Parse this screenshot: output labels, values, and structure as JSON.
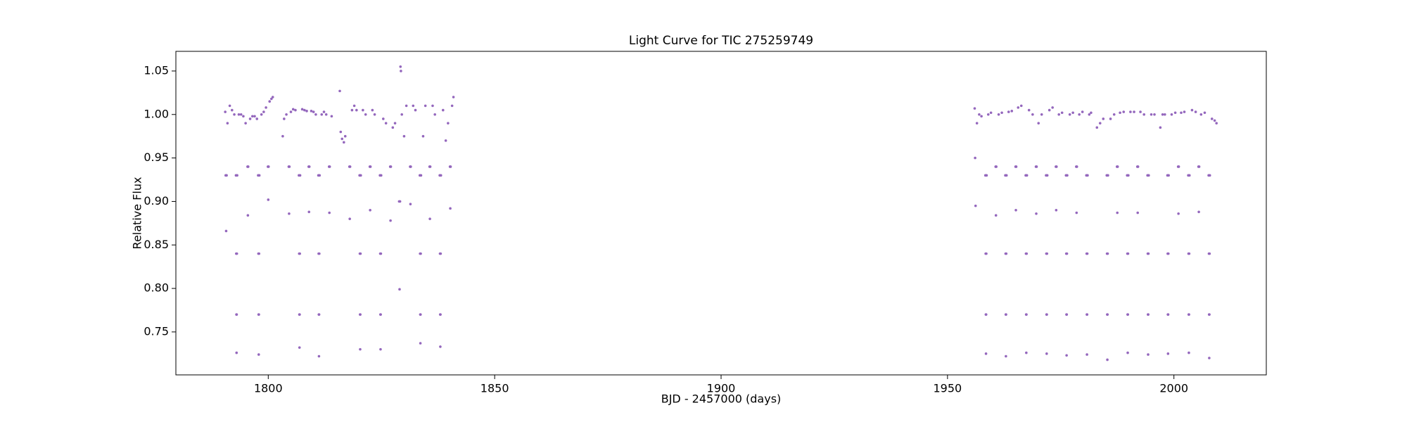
{
  "chart_data": {
    "type": "scatter",
    "title": "Light Curve for TIC 275259749",
    "x_label": "BJD - 2457000 (days)",
    "y_label": "Relative Flux",
    "color": "#9467bd",
    "x": [
      1790.5,
      1790.6,
      1790.7,
      1790.8,
      1791.0,
      1791.5,
      1792.0,
      1792.5,
      1792.87,
      1792.93,
      1792.97,
      1793.0,
      1793.03,
      1793.07,
      1793.13,
      1793.5,
      1794.0,
      1794.5,
      1795.0,
      1795.43,
      1795.5,
      1795.57,
      1796.0,
      1796.5,
      1797.0,
      1797.5,
      1797.77,
      1797.83,
      1797.87,
      1797.9,
      1797.93,
      1797.97,
      1798.03,
      1798.5,
      1799.0,
      1799.5,
      1799.93,
      1800.0,
      1800.07,
      1800.3,
      1800.7,
      1801.0,
      1803.2,
      1803.5,
      1804.0,
      1804.53,
      1804.6,
      1804.67,
      1805.0,
      1805.5,
      1806.0,
      1806.77,
      1806.83,
      1806.87,
      1806.9,
      1806.93,
      1806.97,
      1807.03,
      1807.5,
      1808.0,
      1808.5,
      1808.93,
      1809.0,
      1809.07,
      1809.5,
      1810.0,
      1810.5,
      1811.07,
      1811.13,
      1811.17,
      1811.2,
      1811.23,
      1811.27,
      1811.33,
      1811.8,
      1812.3,
      1812.8,
      1813.43,
      1813.5,
      1813.57,
      1814.0,
      1815.8,
      1816.0,
      1816.3,
      1816.7,
      1817.0,
      1817.93,
      1818.0,
      1818.07,
      1818.5,
      1819.0,
      1819.5,
      1820.17,
      1820.23,
      1820.27,
      1820.3,
      1820.33,
      1820.37,
      1820.43,
      1820.9,
      1821.5,
      1822.43,
      1822.5,
      1822.57,
      1823.0,
      1823.5,
      1824.67,
      1824.73,
      1824.77,
      1824.8,
      1824.83,
      1824.87,
      1824.93,
      1825.4,
      1826.0,
      1826.93,
      1827.0,
      1827.07,
      1827.5,
      1828.0,
      1828.9,
      1829.0,
      1829.1,
      1829.2,
      1829.3,
      1829.5,
      1830.0,
      1830.5,
      1831.33,
      1831.4,
      1831.47,
      1832.0,
      1832.5,
      1833.47,
      1833.53,
      1833.57,
      1833.6,
      1833.63,
      1833.67,
      1833.73,
      1834.2,
      1834.7,
      1835.63,
      1835.7,
      1835.77,
      1836.3,
      1836.8,
      1837.87,
      1837.93,
      1837.97,
      1838.0,
      1838.03,
      1838.07,
      1838.13,
      1838.6,
      1839.2,
      1839.7,
      1840.13,
      1840.2,
      1840.27,
      1840.6,
      1840.9,
      1956.0,
      1956.1,
      1956.2,
      1956.5,
      1957.0,
      1957.5,
      1958.37,
      1958.43,
      1958.47,
      1958.5,
      1958.53,
      1958.57,
      1958.63,
      1959.0,
      1959.6,
      1960.63,
      1960.7,
      1960.77,
      1961.3,
      1962.0,
      1962.77,
      1962.83,
      1962.87,
      1962.9,
      1962.93,
      1962.97,
      1963.03,
      1963.5,
      1964.2,
      1965.03,
      1965.1,
      1965.17,
      1965.6,
      1966.3,
      1967.27,
      1967.33,
      1967.37,
      1967.4,
      1967.43,
      1967.47,
      1967.53,
      1968.0,
      1968.8,
      1969.53,
      1969.6,
      1969.67,
      1970.1,
      1970.8,
      1971.77,
      1971.83,
      1971.87,
      1971.9,
      1971.93,
      1971.97,
      1972.03,
      1972.5,
      1973.2,
      1973.93,
      1974.0,
      1974.07,
      1974.6,
      1975.3,
      1976.17,
      1976.23,
      1976.27,
      1976.3,
      1976.33,
      1976.37,
      1976.43,
      1977.0,
      1977.7,
      1978.43,
      1978.5,
      1978.57,
      1979.1,
      1979.8,
      1980.67,
      1980.73,
      1980.77,
      1980.8,
      1980.83,
      1980.87,
      1980.93,
      1981.3,
      1981.7,
      1983.0,
      1983.7,
      1984.4,
      1985.17,
      1985.23,
      1985.27,
      1985.3,
      1985.33,
      1985.37,
      1985.43,
      1986.0,
      1986.8,
      1987.43,
      1987.5,
      1987.57,
      1988.1,
      1988.9,
      1989.67,
      1989.73,
      1989.77,
      1989.8,
      1989.83,
      1989.87,
      1989.93,
      1990.4,
      1991.2,
      1991.93,
      1992.0,
      1992.07,
      1992.6,
      1993.4,
      1994.17,
      1994.23,
      1994.27,
      1994.3,
      1994.33,
      1994.37,
      1994.43,
      1995.0,
      1995.7,
      1997.0,
      1997.5,
      1998.0,
      1998.57,
      1998.63,
      1998.67,
      1998.7,
      1998.73,
      1998.77,
      1998.83,
      1999.5,
      2000.3,
      2000.93,
      2001.0,
      2001.07,
      2001.6,
      2002.3,
      2003.17,
      2003.23,
      2003.27,
      2003.3,
      2003.33,
      2003.37,
      2003.43,
      2004.0,
      2004.8,
      2005.43,
      2005.5,
      2005.57,
      2006.0,
      2006.8,
      2007.67,
      2007.73,
      2007.77,
      2007.8,
      2007.83,
      2007.87,
      2007.93,
      2008.4,
      2009.0,
      2009.4
    ],
    "values": [
      1.003,
      0.93,
      0.866,
      0.93,
      0.99,
      1.01,
      1.005,
      1.0,
      0.93,
      0.84,
      0.77,
      0.726,
      0.77,
      0.84,
      0.93,
      1.0,
      1.0,
      0.998,
      0.99,
      0.94,
      0.884,
      0.94,
      0.995,
      0.998,
      0.998,
      0.995,
      0.93,
      0.84,
      0.77,
      0.724,
      0.77,
      0.84,
      0.93,
      1.0,
      1.003,
      1.008,
      0.94,
      0.902,
      0.94,
      1.015,
      1.018,
      1.02,
      0.975,
      0.995,
      1.0,
      0.94,
      0.886,
      0.94,
      1.003,
      1.006,
      1.005,
      0.93,
      0.84,
      0.77,
      0.732,
      0.77,
      0.84,
      0.93,
      1.006,
      1.005,
      1.004,
      0.94,
      0.888,
      0.94,
      1.004,
      1.003,
      1.0,
      0.93,
      0.84,
      0.77,
      0.722,
      0.77,
      0.84,
      0.93,
      1.0,
      1.003,
      1.0,
      0.94,
      0.887,
      0.94,
      0.998,
      1.027,
      0.98,
      0.972,
      0.968,
      0.975,
      0.94,
      0.88,
      0.94,
      1.005,
      1.01,
      1.005,
      0.93,
      0.84,
      0.77,
      0.73,
      0.77,
      0.84,
      0.93,
      1.005,
      1.0,
      0.94,
      0.89,
      0.94,
      1.005,
      1.0,
      0.93,
      0.84,
      0.77,
      0.73,
      0.77,
      0.84,
      0.93,
      0.995,
      0.99,
      0.94,
      0.878,
      0.94,
      0.985,
      0.99,
      0.9,
      0.799,
      0.9,
      1.055,
      1.05,
      1.0,
      0.975,
      1.01,
      0.94,
      0.897,
      0.94,
      1.01,
      1.005,
      0.93,
      0.84,
      0.77,
      0.737,
      0.77,
      0.84,
      0.93,
      0.975,
      1.01,
      0.94,
      0.88,
      0.94,
      1.01,
      1.0,
      0.93,
      0.84,
      0.77,
      0.733,
      0.77,
      0.84,
      0.93,
      1.005,
      0.97,
      0.99,
      0.94,
      0.892,
      0.94,
      1.01,
      1.02,
      1.007,
      0.95,
      0.895,
      0.99,
      1.0,
      0.998,
      0.93,
      0.84,
      0.77,
      0.725,
      0.77,
      0.84,
      0.93,
      1.0,
      1.002,
      0.94,
      0.884,
      0.94,
      1.0,
      1.002,
      0.93,
      0.84,
      0.77,
      0.722,
      0.77,
      0.84,
      0.93,
      1.003,
      1.004,
      0.94,
      0.89,
      0.94,
      1.008,
      1.01,
      0.93,
      0.84,
      0.77,
      0.726,
      0.77,
      0.84,
      0.93,
      1.005,
      1.0,
      0.94,
      0.886,
      0.94,
      0.99,
      1.0,
      0.93,
      0.84,
      0.77,
      0.725,
      0.77,
      0.84,
      0.93,
      1.005,
      1.008,
      0.94,
      0.89,
      0.94,
      1.0,
      1.002,
      0.93,
      0.84,
      0.77,
      0.723,
      0.77,
      0.84,
      0.93,
      1.0,
      1.002,
      0.94,
      0.887,
      0.94,
      1.0,
      1.003,
      0.93,
      0.84,
      0.77,
      0.724,
      0.77,
      0.84,
      0.93,
      1.0,
      1.002,
      0.985,
      0.99,
      0.995,
      0.93,
      0.84,
      0.77,
      0.718,
      0.77,
      0.84,
      0.93,
      0.995,
      1.0,
      0.94,
      0.887,
      0.94,
      1.002,
      1.003,
      0.93,
      0.84,
      0.77,
      0.726,
      0.77,
      0.84,
      0.93,
      1.003,
      1.003,
      0.94,
      0.887,
      0.94,
      1.003,
      1.0,
      0.93,
      0.84,
      0.77,
      0.724,
      0.77,
      0.84,
      0.93,
      1.0,
      1.0,
      0.985,
      1.0,
      1.0,
      0.93,
      0.84,
      0.77,
      0.725,
      0.77,
      0.84,
      0.93,
      1.0,
      1.002,
      0.94,
      0.886,
      0.94,
      1.002,
      1.003,
      0.93,
      0.84,
      0.77,
      0.726,
      0.77,
      0.84,
      0.93,
      1.005,
      1.003,
      0.94,
      0.888,
      0.94,
      1.0,
      1.002,
      0.93,
      0.84,
      0.77,
      0.72,
      0.77,
      0.84,
      0.93,
      0.995,
      0.993,
      0.99
    ],
    "xlim": [
      1779.6,
      2020.4
    ],
    "ylim": [
      0.7006,
      1.0726
    ],
    "xticks": [
      1800,
      1850,
      1900,
      1950,
      2000
    ],
    "yticks": [
      0.75,
      {
        "value": 0.8,
        "label": "0.80"
      },
      0.85,
      {
        "value": 0.9,
        "label": "0.90"
      },
      0.95,
      {
        "value": 1.0,
        "label": "1.00"
      },
      1.05
    ],
    "grid": false
  }
}
